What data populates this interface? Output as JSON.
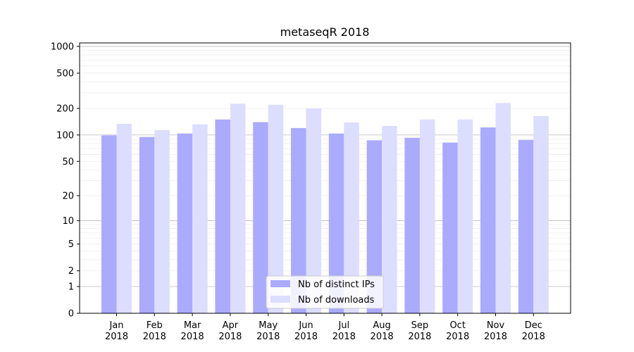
{
  "chart_data": {
    "type": "bar",
    "title": "metaseqR 2018",
    "xlabel": "",
    "ylabel": "",
    "y_scale": "log(1+x)",
    "ylim": [
      0,
      1000
    ],
    "y_ticks": [
      0,
      1,
      2,
      5,
      10,
      20,
      50,
      100,
      200,
      500,
      1000
    ],
    "y_tick_labels": [
      "0",
      "1",
      "2",
      "5",
      "10",
      "20",
      "50",
      "100",
      "200",
      "500",
      "1000"
    ],
    "categories": [
      "Jan\n2018",
      "Feb\n2018",
      "Mar\n2018",
      "Apr\n2018",
      "May\n2018",
      "Jun\n2018",
      "Jul\n2018",
      "Aug\n2018",
      "Sep\n2018",
      "Oct\n2018",
      "Nov\n2018",
      "Dec\n2018"
    ],
    "series": [
      {
        "name": "Nb of distinct IPs",
        "color": "#aaaaff",
        "values": [
          99,
          95,
          104,
          150,
          140,
          120,
          104,
          87,
          93,
          82,
          122,
          88
        ]
      },
      {
        "name": "Nb of downloads",
        "color": "#ddddff",
        "values": [
          134,
          114,
          132,
          226,
          220,
          200,
          139,
          127,
          150,
          150,
          230,
          164
        ]
      }
    ],
    "grid": true,
    "legend_position": "bottom-center"
  }
}
